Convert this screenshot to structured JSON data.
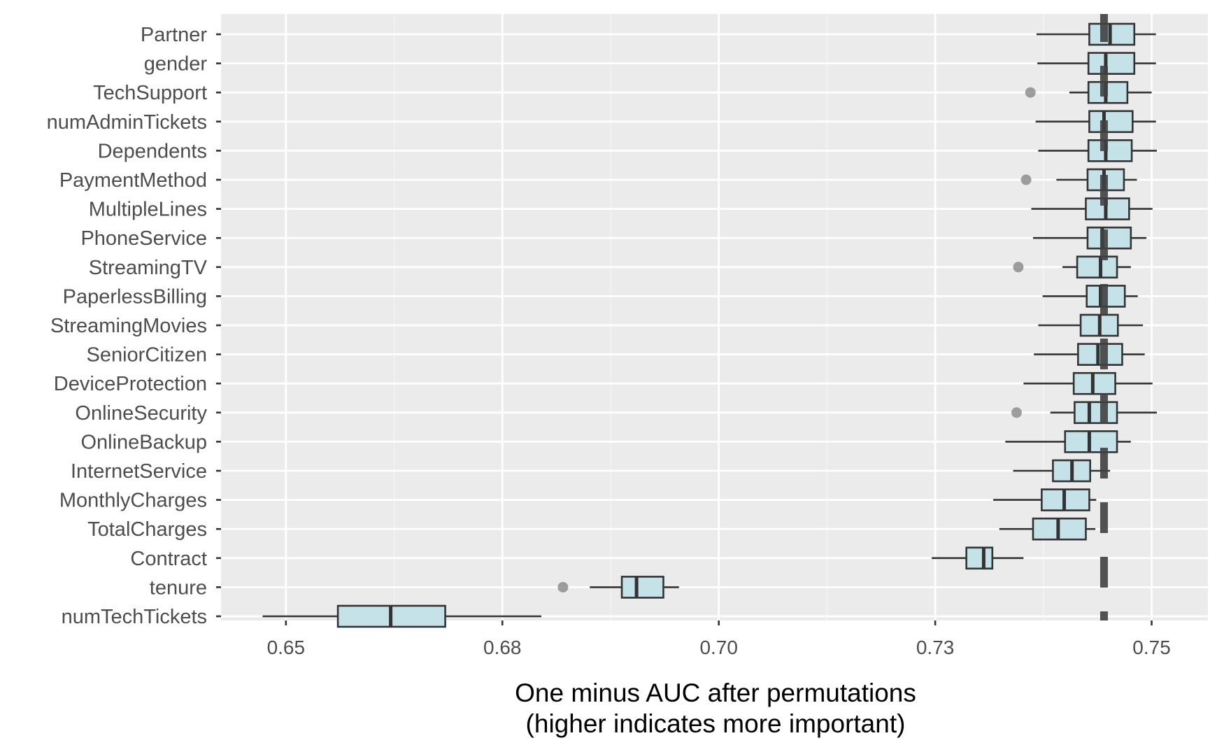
{
  "chart_data": {
    "type": "boxplot",
    "title": "",
    "xlabel_line1": "One minus AUC after permutations",
    "xlabel_line2": "(higher indicates more important)",
    "ylabel": "",
    "xlim": [
      0.6425,
      0.7565
    ],
    "x_ticks": [
      0.65,
      0.675,
      0.7,
      0.725,
      0.75
    ],
    "x_tick_labels": [
      "0.65",
      "0.68",
      "0.70",
      "0.73",
      "0.75"
    ],
    "grid": true,
    "reference_line_x": 0.7445,
    "colors": {
      "panel": "#ebebeb",
      "grid_major": "#ffffff",
      "grid_minor": "#f5f5f5",
      "box_fill": "#c6e2e9",
      "box_stroke": "#333333",
      "outlier": "#808080",
      "reference_line": "#404040"
    },
    "categories": [
      "Partner",
      "gender",
      "TechSupport",
      "numAdminTickets",
      "Dependents",
      "PaymentMethod",
      "MultipleLines",
      "PhoneService",
      "StreamingTV",
      "PaperlessBilling",
      "StreamingMovies",
      "SeniorCitizen",
      "DeviceProtection",
      "OnlineSecurity",
      "OnlineBackup",
      "InternetService",
      "MonthlyCharges",
      "TotalCharges",
      "Contract",
      "tenure",
      "numTechTickets"
    ],
    "boxes": [
      {
        "label": "Partner",
        "min": 0.7367,
        "q1": 0.7428,
        "median": 0.7452,
        "q3": 0.748,
        "max": 0.7505,
        "outliers": []
      },
      {
        "label": "gender",
        "min": 0.7368,
        "q1": 0.7427,
        "median": 0.7447,
        "q3": 0.748,
        "max": 0.7505,
        "outliers": []
      },
      {
        "label": "TechSupport",
        "min": 0.7405,
        "q1": 0.7427,
        "median": 0.7447,
        "q3": 0.7472,
        "max": 0.75,
        "outliers": [
          0.736
        ]
      },
      {
        "label": "numAdminTickets",
        "min": 0.7366,
        "q1": 0.7428,
        "median": 0.7445,
        "q3": 0.7478,
        "max": 0.7505,
        "outliers": []
      },
      {
        "label": "Dependents",
        "min": 0.7369,
        "q1": 0.7427,
        "median": 0.7447,
        "q3": 0.7477,
        "max": 0.7506,
        "outliers": []
      },
      {
        "label": "PaymentMethod",
        "min": 0.739,
        "q1": 0.7426,
        "median": 0.7445,
        "q3": 0.7468,
        "max": 0.7483,
        "outliers": [
          0.7355
        ]
      },
      {
        "label": "MultipleLines",
        "min": 0.7361,
        "q1": 0.7424,
        "median": 0.7447,
        "q3": 0.7474,
        "max": 0.7501,
        "outliers": []
      },
      {
        "label": "PhoneService",
        "min": 0.7363,
        "q1": 0.7426,
        "median": 0.7443,
        "q3": 0.7476,
        "max": 0.7494,
        "outliers": []
      },
      {
        "label": "StreamingTV",
        "min": 0.7397,
        "q1": 0.7414,
        "median": 0.7441,
        "q3": 0.746,
        "max": 0.7476,
        "outliers": [
          0.7346
        ]
      },
      {
        "label": "PaperlessBilling",
        "min": 0.7374,
        "q1": 0.7425,
        "median": 0.7441,
        "q3": 0.7469,
        "max": 0.7484,
        "outliers": []
      },
      {
        "label": "StreamingMovies",
        "min": 0.7369,
        "q1": 0.7418,
        "median": 0.744,
        "q3": 0.7461,
        "max": 0.749,
        "outliers": []
      },
      {
        "label": "SeniorCitizen",
        "min": 0.7364,
        "q1": 0.7415,
        "median": 0.7438,
        "q3": 0.7466,
        "max": 0.7492,
        "outliers": []
      },
      {
        "label": "DeviceProtection",
        "min": 0.7352,
        "q1": 0.741,
        "median": 0.7432,
        "q3": 0.7458,
        "max": 0.7501,
        "outliers": []
      },
      {
        "label": "OnlineSecurity",
        "min": 0.7383,
        "q1": 0.7411,
        "median": 0.7428,
        "q3": 0.746,
        "max": 0.7506,
        "outliers": [
          0.7344
        ]
      },
      {
        "label": "OnlineBackup",
        "min": 0.7331,
        "q1": 0.74,
        "median": 0.7428,
        "q3": 0.746,
        "max": 0.7476,
        "outliers": []
      },
      {
        "label": "InternetService",
        "min": 0.734,
        "q1": 0.7386,
        "median": 0.7408,
        "q3": 0.7429,
        "max": 0.7452,
        "outliers": []
      },
      {
        "label": "MonthlyCharges",
        "min": 0.7317,
        "q1": 0.7373,
        "median": 0.7399,
        "q3": 0.7428,
        "max": 0.7436,
        "outliers": []
      },
      {
        "label": "TotalCharges",
        "min": 0.7324,
        "q1": 0.7363,
        "median": 0.7392,
        "q3": 0.7424,
        "max": 0.7435,
        "outliers": []
      },
      {
        "label": "Contract",
        "min": 0.7246,
        "q1": 0.7286,
        "median": 0.7306,
        "q3": 0.7316,
        "max": 0.7352,
        "outliers": []
      },
      {
        "label": "tenure",
        "min": 0.6851,
        "q1": 0.6888,
        "median": 0.6905,
        "q3": 0.6936,
        "max": 0.6954,
        "outliers": [
          0.682
        ]
      },
      {
        "label": "numTechTickets",
        "min": 0.6473,
        "q1": 0.656,
        "median": 0.6621,
        "q3": 0.6684,
        "max": 0.6795,
        "outliers": []
      }
    ]
  }
}
